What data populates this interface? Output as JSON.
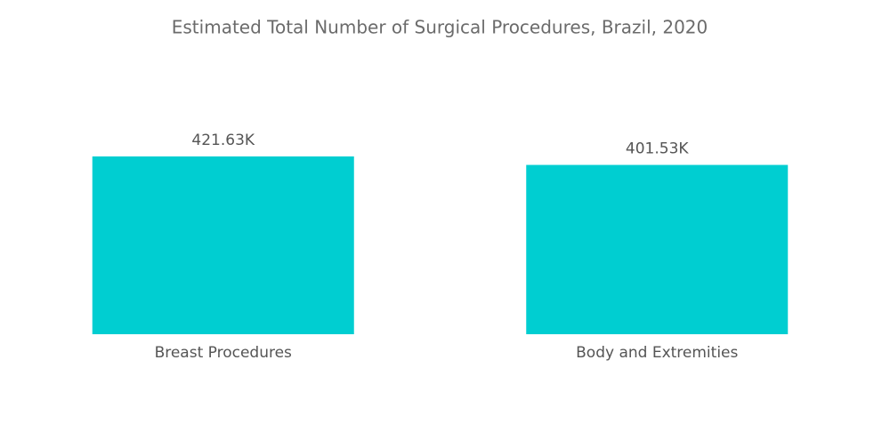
{
  "chart_data": {
    "type": "bar",
    "title": "Estimated Total Number of Surgical Procedures, Brazil, 2020",
    "categories": [
      "Breast Procedures",
      "Body and Extremities"
    ],
    "values": [
      421.63,
      401.53
    ],
    "value_labels": [
      "421.63K",
      "401.53K"
    ],
    "color": "#00ced1"
  }
}
